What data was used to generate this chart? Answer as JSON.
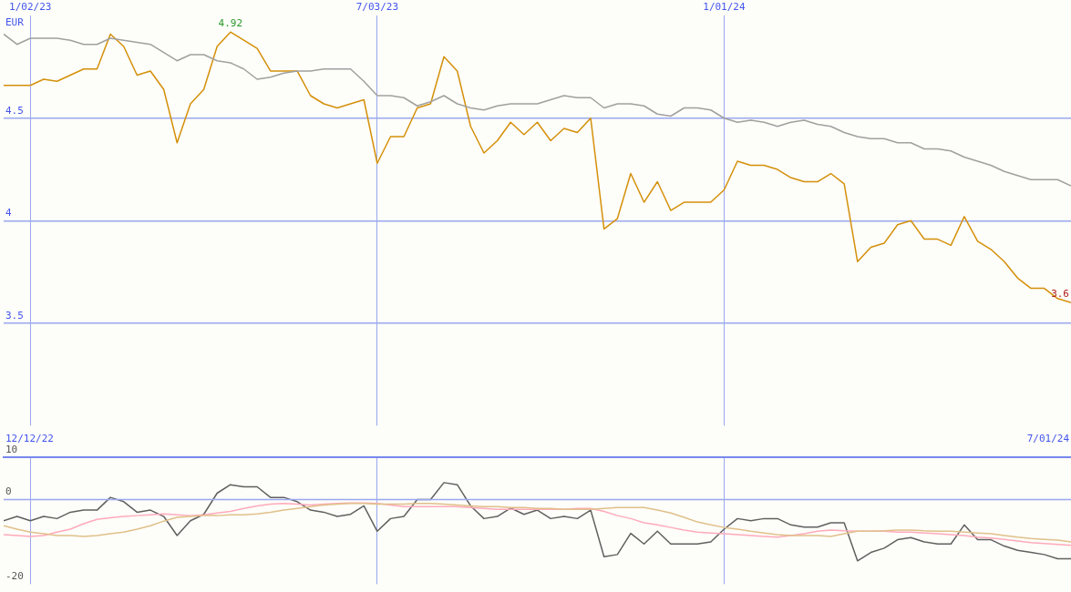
{
  "chart_data": [
    {
      "type": "line",
      "ylabel": "EUR",
      "x": [
        "2022-12-19",
        "2022-12-26",
        "2023-01-02",
        "2023-01-09",
        "2023-01-16",
        "2023-01-23",
        "2023-01-30",
        "2023-02-06",
        "2023-02-13",
        "2023-02-20",
        "2023-02-27",
        "2023-03-06",
        "2023-03-13",
        "2023-03-20",
        "2023-03-27",
        "2023-04-03",
        "2023-04-10",
        "2023-04-17",
        "2023-04-24",
        "2023-05-01",
        "2023-05-08",
        "2023-05-15",
        "2023-05-22",
        "2023-05-29",
        "2023-06-05",
        "2023-06-12",
        "2023-06-19",
        "2023-06-26",
        "2023-07-03",
        "2023-07-10",
        "2023-07-17",
        "2023-07-24",
        "2023-07-31",
        "2023-08-07",
        "2023-08-14",
        "2023-08-21",
        "2023-08-28",
        "2023-09-04",
        "2023-09-11",
        "2023-09-18",
        "2023-09-25",
        "2023-10-02",
        "2023-10-09",
        "2023-10-16",
        "2023-10-23",
        "2023-10-30",
        "2023-11-06",
        "2023-11-13",
        "2023-11-20",
        "2023-11-27",
        "2023-12-04",
        "2023-12-11",
        "2023-12-18",
        "2023-12-25",
        "2024-01-01",
        "2024-01-08",
        "2024-01-15",
        "2024-01-22",
        "2024-01-29",
        "2024-02-05",
        "2024-02-12",
        "2024-02-19",
        "2024-02-26",
        "2024-03-04",
        "2024-03-11",
        "2024-03-18",
        "2024-03-25",
        "2024-04-01",
        "2024-04-08",
        "2024-04-15",
        "2024-04-22",
        "2024-04-29",
        "2024-05-06",
        "2024-05-13",
        "2024-05-20",
        "2024-05-27",
        "2024-06-03",
        "2024-06-10",
        "2024-06-17",
        "2024-06-24",
        "2024-07-01"
      ],
      "series": [
        {
          "color": "#a0a0a0",
          "values": [
            4.91,
            4.86,
            4.89,
            4.89,
            4.89,
            4.88,
            4.86,
            4.86,
            4.89,
            4.88,
            4.87,
            4.86,
            4.82,
            4.78,
            4.81,
            4.81,
            4.78,
            4.77,
            4.74,
            4.69,
            4.7,
            4.72,
            4.73,
            4.73,
            4.74,
            4.74,
            4.74,
            4.68,
            4.61,
            4.61,
            4.6,
            4.56,
            4.58,
            4.61,
            4.57,
            4.55,
            4.54,
            4.56,
            4.57,
            4.57,
            4.57,
            4.59,
            4.61,
            4.6,
            4.6,
            4.55,
            4.57,
            4.57,
            4.56,
            4.52,
            4.51,
            4.55,
            4.55,
            4.54,
            4.5,
            4.48,
            4.49,
            4.48,
            4.46,
            4.48,
            4.49,
            4.47,
            4.46,
            4.43,
            4.41,
            4.4,
            4.4,
            4.38,
            4.38,
            4.35,
            4.35,
            4.34,
            4.31,
            4.29,
            4.27,
            4.24,
            4.22,
            4.2,
            4.2,
            4.2,
            4.17
          ]
        },
        {
          "color": "#d4900a",
          "values": [
            4.66,
            4.66,
            4.66,
            4.69,
            4.68,
            4.71,
            4.74,
            4.74,
            4.91,
            4.85,
            4.71,
            4.73,
            4.64,
            4.38,
            4.57,
            4.64,
            4.85,
            4.92,
            4.88,
            4.84,
            4.73,
            4.73,
            4.73,
            4.61,
            4.57,
            4.55,
            4.57,
            4.59,
            4.28,
            4.41,
            4.41,
            4.55,
            4.57,
            4.8,
            4.73,
            4.46,
            4.33,
            4.39,
            4.48,
            4.42,
            4.48,
            4.39,
            4.45,
            4.43,
            4.5,
            3.96,
            4.01,
            4.23,
            4.09,
            4.19,
            4.05,
            4.09,
            4.09,
            4.09,
            4.15,
            4.29,
            4.27,
            4.27,
            4.25,
            4.21,
            4.19,
            4.19,
            4.23,
            4.18,
            3.8,
            3.87,
            3.89,
            3.98,
            4.0,
            3.91,
            3.91,
            3.88,
            4.02,
            3.9,
            3.86,
            3.8,
            3.72,
            3.67,
            3.67,
            3.62,
            3.6
          ]
        }
      ],
      "xlim": [
        "2022-12-19",
        "2024-07-01"
      ],
      "xticks": [
        {
          "value": "2023-01-02",
          "label": "1/02/23"
        },
        {
          "value": "2023-07-03",
          "label": "7/03/23"
        },
        {
          "value": "2024-01-01",
          "label": "1/01/24"
        }
      ],
      "ylim": [
        3,
        5
      ],
      "yticks": [
        3.5,
        4,
        4.5
      ],
      "grid": true,
      "annotations": [
        {
          "text": "4.92",
          "x": "2023-04-17",
          "y": 4.92
        },
        {
          "text": "3.6",
          "x": "2024-07-01",
          "y": 3.6
        }
      ]
    },
    {
      "type": "line",
      "x": [
        "2022-12-19",
        "2022-12-26",
        "2023-01-02",
        "2023-01-09",
        "2023-01-16",
        "2023-01-23",
        "2023-01-30",
        "2023-02-06",
        "2023-02-13",
        "2023-02-20",
        "2023-02-27",
        "2023-03-06",
        "2023-03-13",
        "2023-03-20",
        "2023-03-27",
        "2023-04-03",
        "2023-04-10",
        "2023-04-17",
        "2023-04-24",
        "2023-05-01",
        "2023-05-08",
        "2023-05-15",
        "2023-05-22",
        "2023-05-29",
        "2023-06-05",
        "2023-06-12",
        "2023-06-19",
        "2023-06-26",
        "2023-07-03",
        "2023-07-10",
        "2023-07-17",
        "2023-07-24",
        "2023-07-31",
        "2023-08-07",
        "2023-08-14",
        "2023-08-21",
        "2023-08-28",
        "2023-09-04",
        "2023-09-11",
        "2023-09-18",
        "2023-09-25",
        "2023-10-02",
        "2023-10-09",
        "2023-10-16",
        "2023-10-23",
        "2023-10-30",
        "2023-11-06",
        "2023-11-13",
        "2023-11-20",
        "2023-11-27",
        "2023-12-04",
        "2023-12-11",
        "2023-12-18",
        "2023-12-25",
        "2024-01-01",
        "2024-01-08",
        "2024-01-15",
        "2024-01-22",
        "2024-01-29",
        "2024-02-05",
        "2024-02-12",
        "2024-02-19",
        "2024-02-26",
        "2024-03-04",
        "2024-03-11",
        "2024-03-18",
        "2024-03-25",
        "2024-04-01",
        "2024-04-08",
        "2024-04-15",
        "2024-04-22",
        "2024-04-29",
        "2024-05-06",
        "2024-05-13",
        "2024-05-20",
        "2024-05-27",
        "2024-06-03",
        "2024-06-10",
        "2024-06-17",
        "2024-06-24",
        "2024-07-01"
      ],
      "series": [
        {
          "color": "#e0c08a",
          "values": [
            -6.2,
            -7.0,
            -7.7,
            -8.1,
            -8.5,
            -8.5,
            -8.7,
            -8.5,
            -8.1,
            -7.7,
            -7.0,
            -6.2,
            -5.1,
            -4.2,
            -4.0,
            -3.8,
            -3.8,
            -3.6,
            -3.6,
            -3.4,
            -3.0,
            -2.5,
            -2.1,
            -1.7,
            -1.3,
            -1.1,
            -0.9,
            -0.9,
            -1.1,
            -1.1,
            -1.1,
            -0.9,
            -0.9,
            -1.1,
            -1.3,
            -1.5,
            -1.7,
            -1.7,
            -1.9,
            -1.9,
            -2.1,
            -2.1,
            -2.3,
            -2.3,
            -2.3,
            -2.1,
            -1.9,
            -1.9,
            -1.9,
            -2.5,
            -3.2,
            -4.2,
            -5.3,
            -6.0,
            -6.6,
            -7.0,
            -7.5,
            -7.9,
            -8.3,
            -8.5,
            -8.5,
            -8.5,
            -8.7,
            -8.1,
            -7.5,
            -7.5,
            -7.4,
            -7.2,
            -7.2,
            -7.4,
            -7.5,
            -7.5,
            -7.7,
            -7.9,
            -8.1,
            -8.5,
            -8.9,
            -9.2,
            -9.4,
            -9.6,
            -10.0
          ]
        },
        {
          "color": "#ffaabb",
          "values": [
            -8.3,
            -8.5,
            -8.7,
            -8.5,
            -7.7,
            -7.0,
            -5.7,
            -4.7,
            -4.3,
            -4.0,
            -3.8,
            -3.6,
            -3.4,
            -3.6,
            -3.8,
            -3.6,
            -3.2,
            -2.8,
            -2.1,
            -1.5,
            -1.1,
            -0.9,
            -1.1,
            -1.3,
            -1.1,
            -0.9,
            -0.8,
            -0.8,
            -0.9,
            -1.3,
            -1.7,
            -1.7,
            -1.7,
            -1.7,
            -1.7,
            -1.9,
            -2.1,
            -2.3,
            -2.3,
            -2.3,
            -2.3,
            -2.3,
            -2.3,
            -2.1,
            -2.1,
            -2.8,
            -3.8,
            -4.5,
            -5.5,
            -6.0,
            -6.6,
            -7.2,
            -7.7,
            -7.9,
            -8.1,
            -8.3,
            -8.5,
            -8.7,
            -8.9,
            -8.5,
            -8.1,
            -7.5,
            -7.2,
            -7.4,
            -7.5,
            -7.5,
            -7.5,
            -7.7,
            -7.7,
            -7.9,
            -8.1,
            -8.3,
            -8.5,
            -8.9,
            -9.1,
            -9.4,
            -9.8,
            -10.2,
            -10.4,
            -10.6,
            -10.8
          ]
        },
        {
          "color": "#606060",
          "values": [
            -5,
            -4,
            -5,
            -4,
            -4.5,
            -3,
            -2.5,
            -2.5,
            0.5,
            -0.5,
            -3,
            -2.5,
            -4,
            -8.5,
            -5,
            -3.5,
            1.5,
            3.5,
            3,
            3,
            0.5,
            0.5,
            -0.5,
            -2.5,
            -3,
            -4,
            -3.5,
            -1.5,
            -7.5,
            -4.5,
            -4,
            0,
            0,
            4,
            3.5,
            -1.5,
            -4.5,
            -4,
            -2,
            -3.5,
            -2.5,
            -4.5,
            -4,
            -4.5,
            -2.5,
            -13.5,
            -13,
            -8,
            -10.5,
            -7.5,
            -10.5,
            -10.5,
            -10.5,
            -10,
            -7,
            -4.5,
            -5,
            -4.5,
            -4.5,
            -6,
            -6.5,
            -6.5,
            -5.5,
            -5.5,
            -14.5,
            -12.5,
            -11.5,
            -9.5,
            -9,
            -10,
            -10.5,
            -10.5,
            -6,
            -9.5,
            -9.5,
            -11,
            -12,
            -12.5,
            -13,
            -14,
            -14
          ]
        }
      ],
      "xlim": [
        "2022-12-19",
        "2024-07-01"
      ],
      "xticks": [
        {
          "value": "2023-01-02",
          "label": null
        },
        {
          "value": "2023-07-03",
          "label": null
        },
        {
          "value": "2024-01-01",
          "label": null
        }
      ],
      "ylim": [
        -20,
        10
      ],
      "yticks": [
        10,
        0,
        -20
      ],
      "grid": "x",
      "tick_labels": "y",
      "ref_lines": [
        {
          "axis": "y",
          "value": 0,
          "color": "#9aa8f0"
        }
      ],
      "annotations": [
        "12/12/22",
        "7/01/24"
      ]
    }
  ]
}
